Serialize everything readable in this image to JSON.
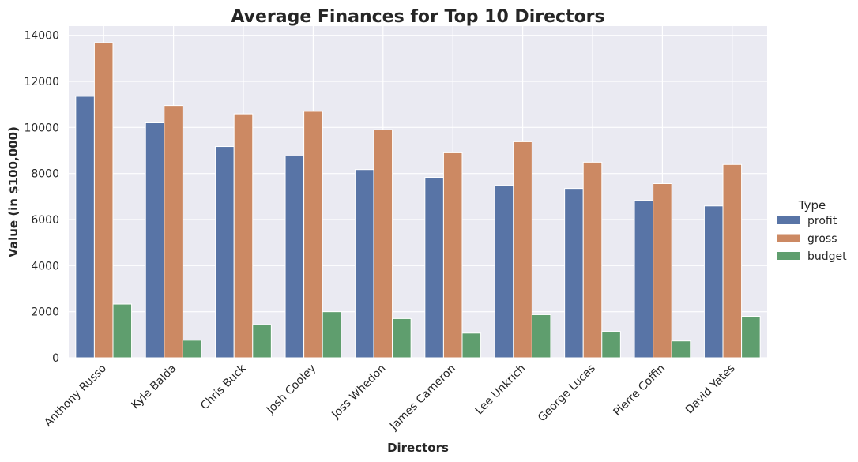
{
  "chart_data": {
    "type": "bar",
    "title": "Average Finances for Top 10 Directors",
    "xlabel": "Directors",
    "ylabel": "Value (in $100,000)",
    "ylim": [
      0,
      14400
    ],
    "yticks": [
      0,
      2000,
      4000,
      6000,
      8000,
      10000,
      12000,
      14000
    ],
    "grid": true,
    "legend": {
      "title": "Type",
      "placement": "right"
    },
    "categories": [
      "Anthony Russo",
      "Kyle Balda",
      "Chris Buck",
      "Josh Cooley",
      "Joss Whedon",
      "James Cameron",
      "Lee Unkrich",
      "George Lucas",
      "Pierre Coffin",
      "David Yates"
    ],
    "series": [
      {
        "name": "profit",
        "color": "#5874a6",
        "values": [
          11350,
          10200,
          9170,
          8760,
          8170,
          7830,
          7480,
          7350,
          6830,
          6590
        ]
      },
      {
        "name": "gross",
        "color": "#cc8963",
        "values": [
          13680,
          10950,
          10590,
          10700,
          9900,
          8900,
          9380,
          8490,
          7560,
          8390
        ]
      },
      {
        "name": "budget",
        "color": "#5f9e6e",
        "values": [
          2330,
          760,
          1440,
          2000,
          1700,
          1070,
          1870,
          1140,
          730,
          1800
        ]
      }
    ],
    "background": "#eaeaf2"
  }
}
